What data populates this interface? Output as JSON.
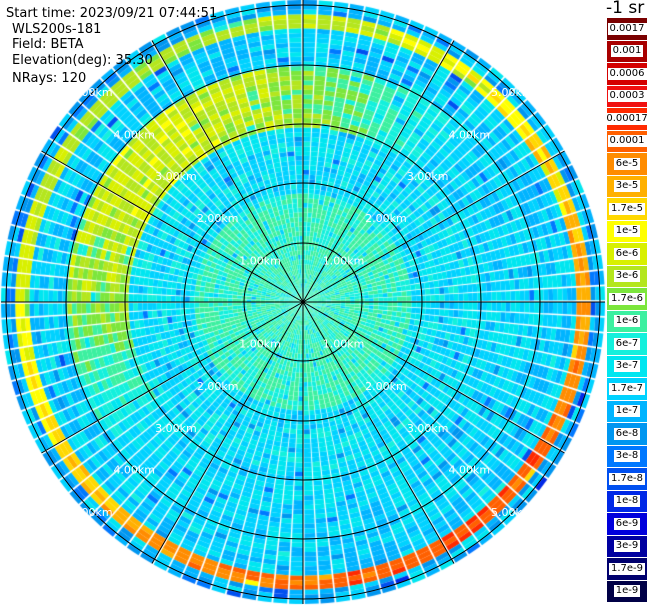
{
  "header": {
    "start_time": "Start time: 2023/09/21 07:44:51",
    "instrument": "WLS200s-181",
    "field": "Field: BETA",
    "elevation": "Elevation(deg): 35.30",
    "nrays": "NRays: 120"
  },
  "colorbar": {
    "unit": "-1 sr",
    "levels": [
      {
        "label": "0.0017",
        "color": "#7a0000"
      },
      {
        "label": "0.001",
        "color": "#a80000"
      },
      {
        "label": "0.0006",
        "color": "#d40000"
      },
      {
        "label": "0.0003",
        "color": "#f01010"
      },
      {
        "label": "0.00017",
        "color": "#ff2a00"
      },
      {
        "label": "0.0001",
        "color": "#ff6000"
      },
      {
        "label": "6e-5",
        "color": "#ff8c00"
      },
      {
        "label": "3e-5",
        "color": "#ffb000"
      },
      {
        "label": "1.7e-5",
        "color": "#ffd800"
      },
      {
        "label": "1e-5",
        "color": "#ffff00"
      },
      {
        "label": "6e-6",
        "color": "#d8f000"
      },
      {
        "label": "3e-6",
        "color": "#b4e61e"
      },
      {
        "label": "1.7e-6",
        "color": "#7ce63c"
      },
      {
        "label": "1e-6",
        "color": "#3cf0a0"
      },
      {
        "label": "6e-7",
        "color": "#14f0dc"
      },
      {
        "label": "3e-7",
        "color": "#00e6f0"
      },
      {
        "label": "1.7e-7",
        "color": "#00d2ff"
      },
      {
        "label": "1e-7",
        "color": "#00b4ff"
      },
      {
        "label": "6e-8",
        "color": "#0096f0"
      },
      {
        "label": "3e-8",
        "color": "#0078ff"
      },
      {
        "label": "1.7e-8",
        "color": "#0050f0"
      },
      {
        "label": "1e-8",
        "color": "#0028e6"
      },
      {
        "label": "6e-9",
        "color": "#0000dc"
      },
      {
        "label": "3e-9",
        "color": "#0000a0"
      },
      {
        "label": "1.7e-9",
        "color": "#00006e"
      },
      {
        "label": "1e-9",
        "color": "#000046"
      }
    ]
  },
  "range_rings": {
    "labels": [
      "1.00km",
      "2.00km",
      "3.00km",
      "4.00km",
      "5.00km"
    ]
  }
}
